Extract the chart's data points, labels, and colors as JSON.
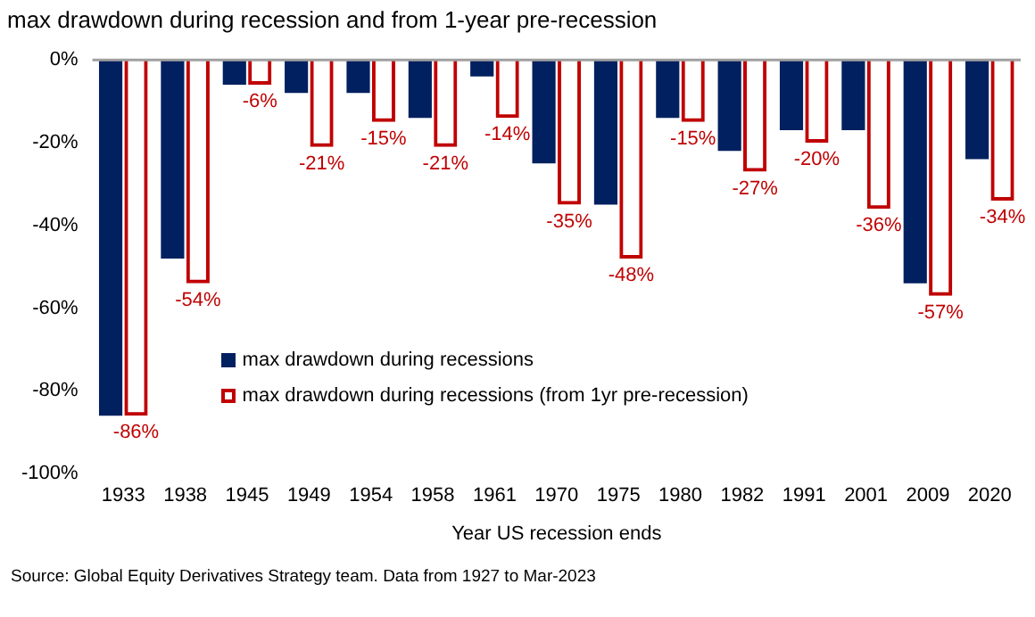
{
  "chart_data": {
    "type": "bar",
    "title": "max drawdown during recession and from 1-year pre-recession",
    "xlabel": "Year US recession ends",
    "categories": [
      "1933",
      "1938",
      "1945",
      "1949",
      "1954",
      "1958",
      "1961",
      "1970",
      "1975",
      "1980",
      "1982",
      "1991",
      "2001",
      "2009",
      "2020"
    ],
    "series": [
      {
        "name": "max drawdown during recessions",
        "color": "#002060",
        "values": [
          -86,
          -48,
          -6,
          -8,
          -8,
          -14,
          -4,
          -25,
          -35,
          -14,
          -22,
          -17,
          -17,
          -54,
          -24
        ]
      },
      {
        "name": "max drawdown during recessions (from 1yr pre-recession)",
        "color": "#c00000",
        "values": [
          -86,
          -54,
          -6,
          -21,
          -15,
          -21,
          -14,
          -35,
          -48,
          -15,
          -27,
          -20,
          -36,
          -57,
          -34
        ],
        "value_labels": [
          "-86%",
          "-54%",
          "-6%",
          "-21%",
          "-15%",
          "-21%",
          "-14%",
          "-35%",
          "-48%",
          "-15%",
          "-27%",
          "-20%",
          "-36%",
          "-57%",
          "-34%"
        ]
      }
    ],
    "ylim": [
      -100,
      0
    ],
    "yticks": [
      {
        "value": -100,
        "label": "-100%"
      },
      {
        "value": -80,
        "label": "-80%"
      },
      {
        "value": -60,
        "label": "-60%"
      },
      {
        "value": -40,
        "label": "-40%"
      },
      {
        "value": -20,
        "label": "-20%"
      },
      {
        "value": 0,
        "label": "0%"
      }
    ],
    "grid": false,
    "legend": "bottom",
    "annotations": [
      "Source: Global Equity Derivatives Strategy team. Data from 1927 to Mar-2023"
    ]
  }
}
